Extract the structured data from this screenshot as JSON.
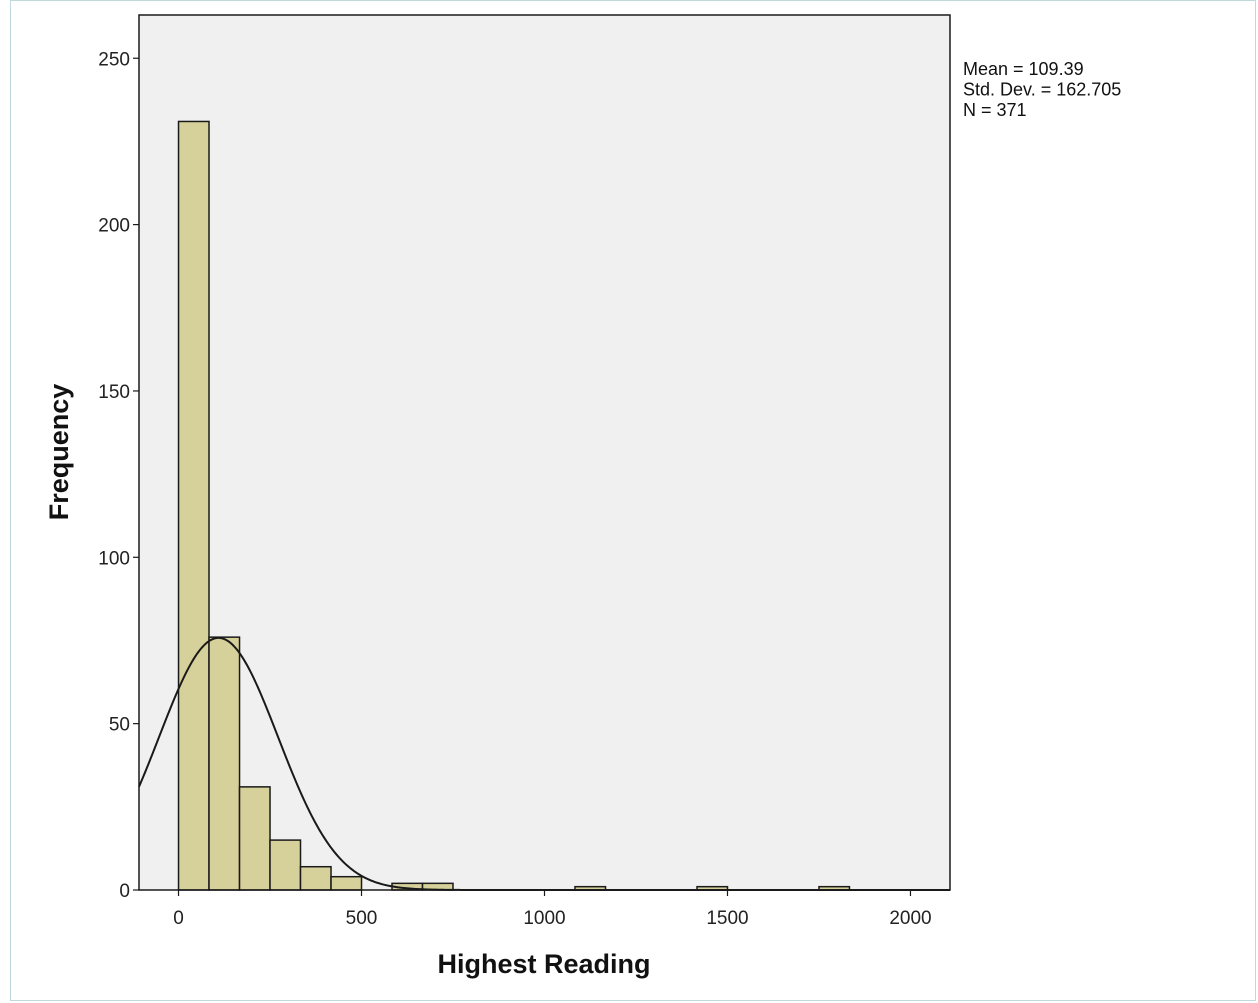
{
  "chart_data": {
    "type": "bar",
    "subtype": "histogram",
    "xlabel": "Highest Reading",
    "ylabel": "Frequency",
    "xlim": [
      -108,
      2108
    ],
    "ylim": [
      0,
      263
    ],
    "x_ticks": [
      0,
      500,
      1000,
      1500,
      2000
    ],
    "y_ticks": [
      0,
      50,
      100,
      150,
      200,
      250
    ],
    "bin_width": 83.3,
    "bins": [
      {
        "start": 0,
        "end": 83.3,
        "count": 231
      },
      {
        "start": 83.3,
        "end": 166.7,
        "count": 76
      },
      {
        "start": 166.7,
        "end": 250,
        "count": 31
      },
      {
        "start": 250,
        "end": 333.3,
        "count": 15
      },
      {
        "start": 333.3,
        "end": 416.7,
        "count": 7
      },
      {
        "start": 416.7,
        "end": 500,
        "count": 4
      },
      {
        "start": 583.3,
        "end": 666.7,
        "count": 2
      },
      {
        "start": 666.7,
        "end": 750,
        "count": 2
      },
      {
        "start": 1083.3,
        "end": 1166.7,
        "count": 1
      },
      {
        "start": 1416.7,
        "end": 1500,
        "count": 1
      },
      {
        "start": 1750,
        "end": 1833.3,
        "count": 1
      }
    ],
    "normal_curve": {
      "mean": 109.39,
      "sd": 162.705,
      "n": 371
    },
    "stats_box": [
      "Mean = 109.39",
      "Std. Dev. = 162.705",
      "N = 371"
    ],
    "grid": false,
    "colors": {
      "bar_fill": "#d6d19a",
      "bar_stroke": "#1a1a1a",
      "plot_background": "#f0f0f0",
      "curve": "#1a1a1a"
    }
  }
}
